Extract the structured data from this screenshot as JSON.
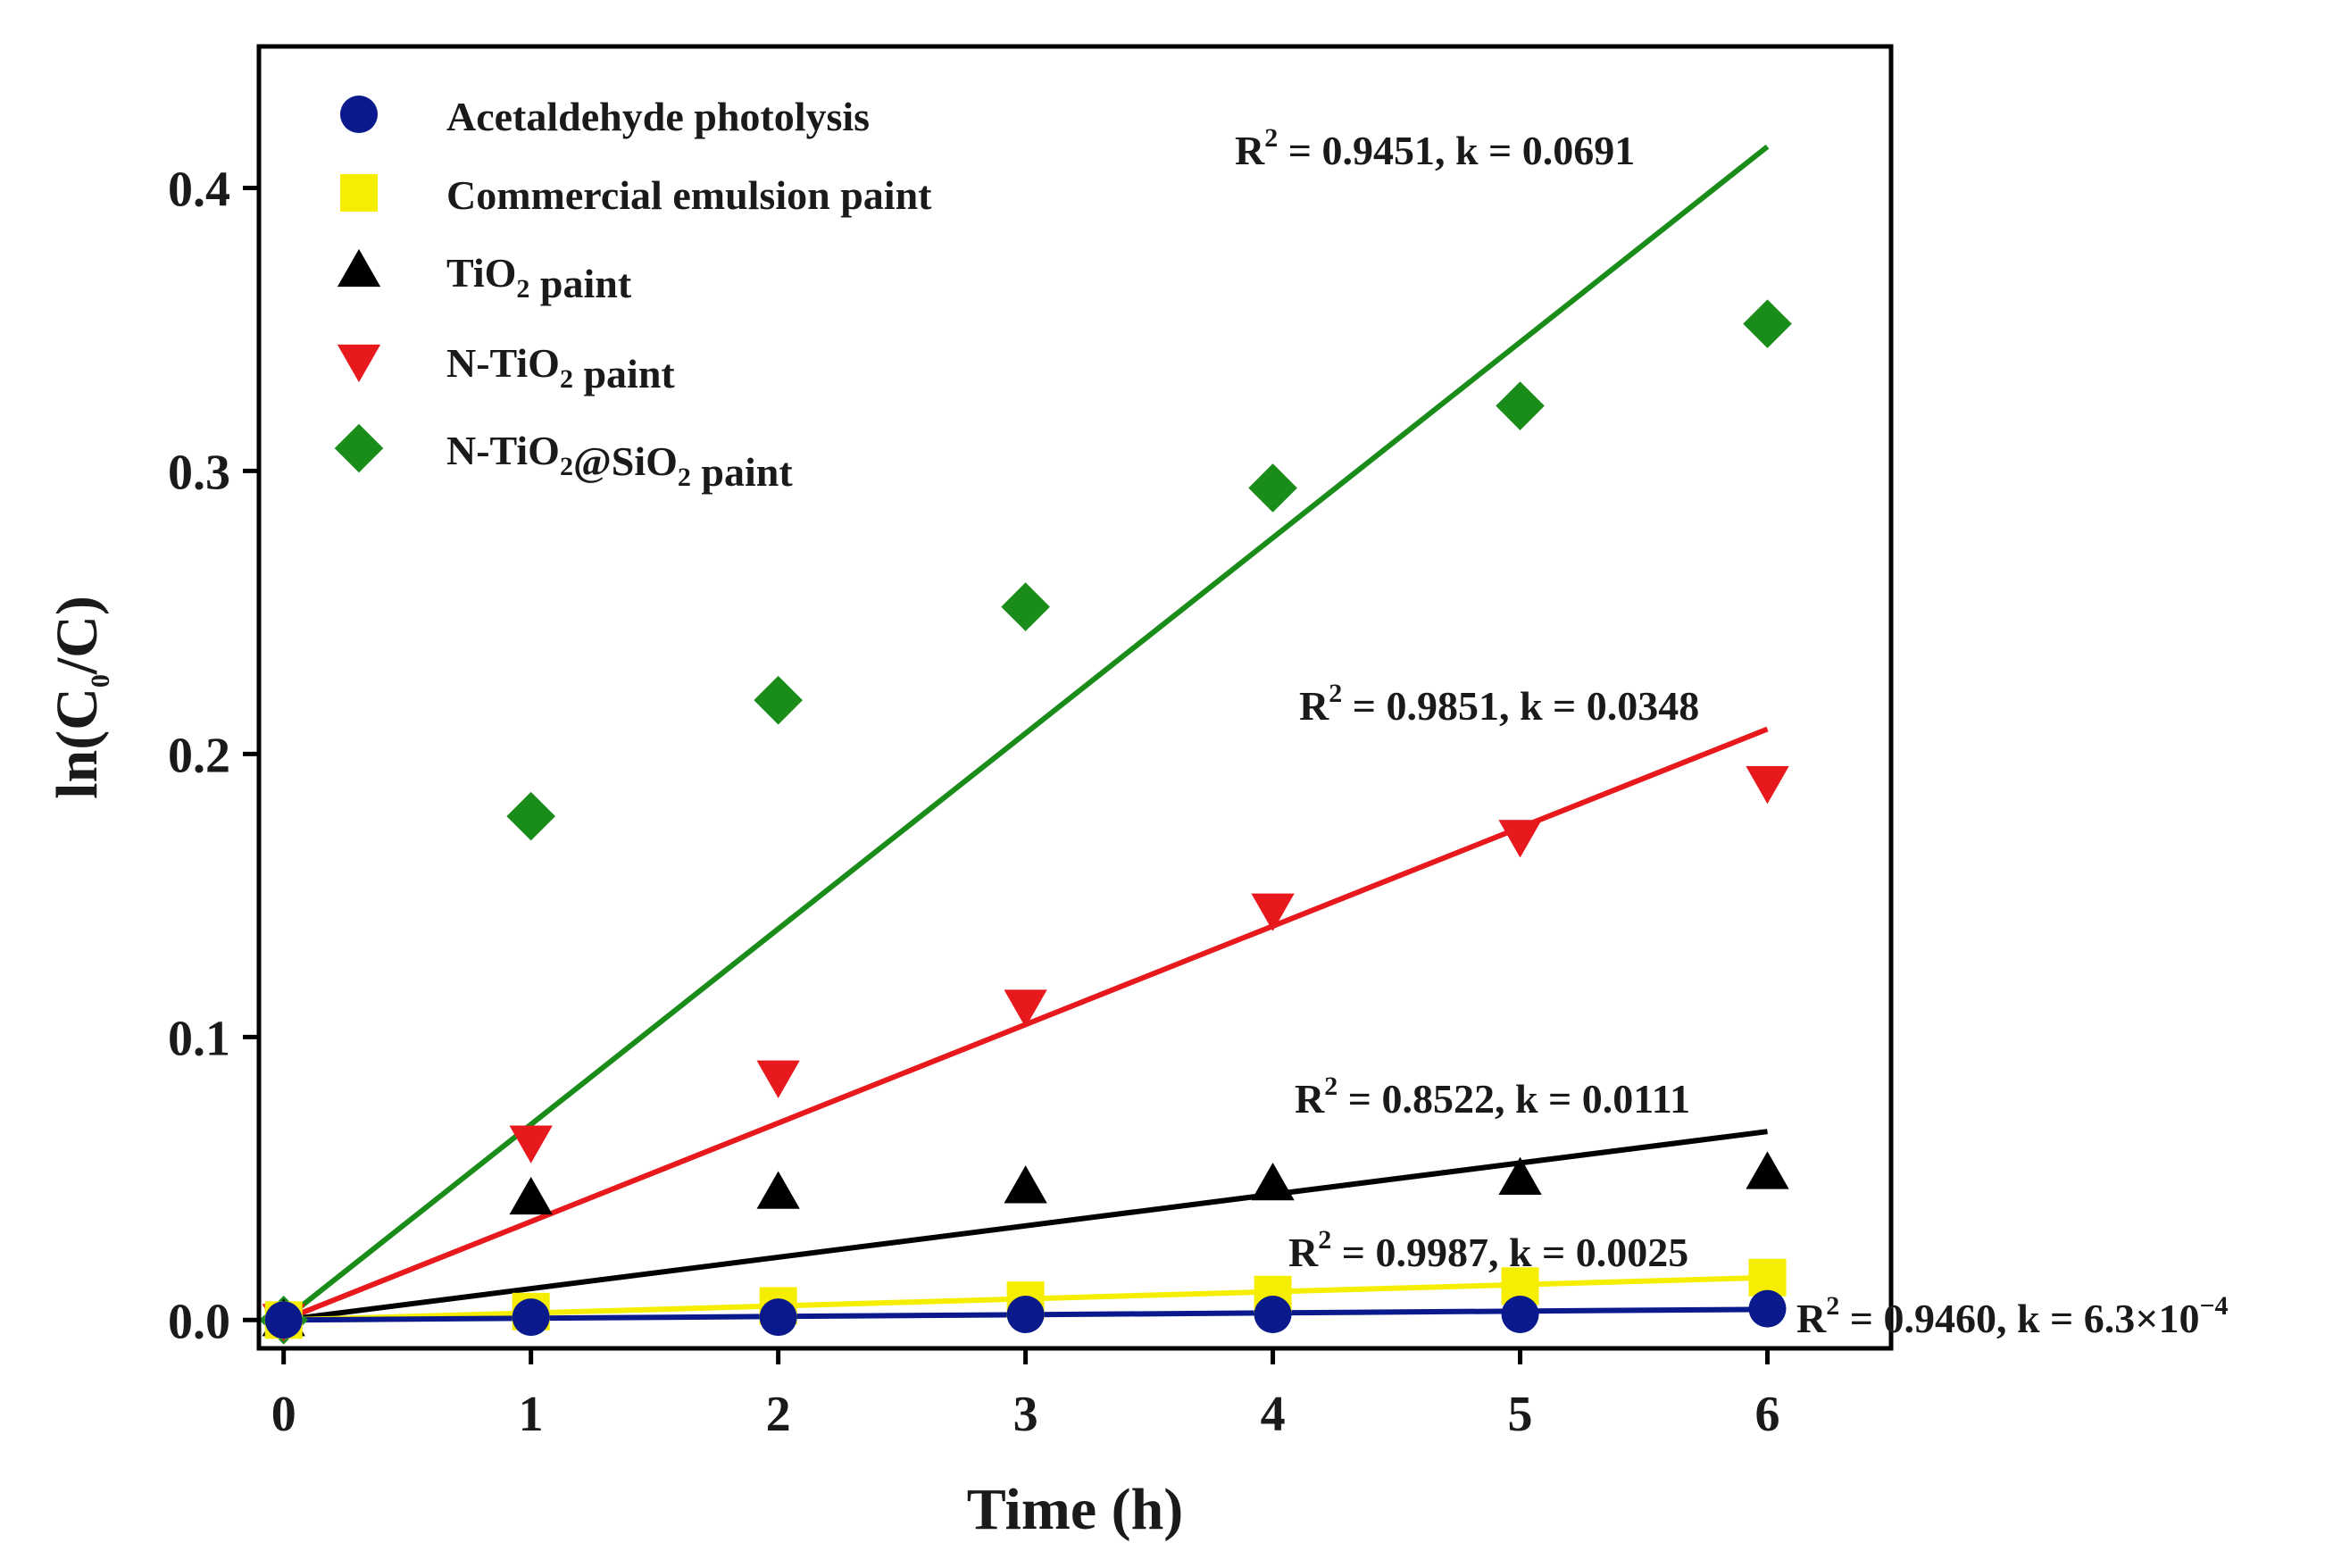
{
  "chart_data": {
    "type": "scatter",
    "xlabel": "Time (h)",
    "ylabel": {
      "prefix": "ln(C",
      "sub": "0",
      "suffix": "/C)"
    },
    "xlim": [
      -0.1,
      6.5
    ],
    "ylim": [
      -0.01,
      0.45
    ],
    "xticks": [
      0,
      1,
      2,
      3,
      4,
      5,
      6
    ],
    "yticks": [
      0.0,
      0.1,
      0.2,
      0.3,
      0.4
    ],
    "ytick_labels": [
      "0.0",
      "0.1",
      "0.2",
      "0.3",
      "0.4"
    ],
    "series": [
      {
        "name": "Acetaldehyde photolysis",
        "label_parts": [
          {
            "t": "Acetaldehyde photolysis"
          }
        ],
        "marker": "circle",
        "color": "#0a1a8c",
        "line_color": "#0a1a8c",
        "x": [
          0,
          1,
          2,
          3,
          4,
          5,
          6
        ],
        "y": [
          0.0,
          0.001,
          0.001,
          0.002,
          0.002,
          0.002,
          0.004
        ],
        "fit_slope": 0.00063,
        "annotation": {
          "r2": "0.9460",
          "k_text": "6.3×10",
          "k_exp": "−4"
        }
      },
      {
        "name": "Commercial emulsion paint",
        "label_parts": [
          {
            "t": "Commercial emulsion paint"
          }
        ],
        "marker": "square",
        "color": "#f5ee00",
        "line_color": "#f5ee00",
        "x": [
          0,
          1,
          2,
          3,
          4,
          5,
          6
        ],
        "y": [
          0.0,
          0.003,
          0.005,
          0.007,
          0.009,
          0.012,
          0.015
        ],
        "fit_slope": 0.0025,
        "annotation": {
          "r2": "0.9987",
          "k_text": "0.0025",
          "k_exp": ""
        }
      },
      {
        "name": "TiO2 paint",
        "label_parts": [
          {
            "t": "TiO"
          },
          {
            "sub": "2"
          },
          {
            "t": " paint"
          }
        ],
        "marker": "triangle-up",
        "color": "#000000",
        "line_color": "#000000",
        "x": [
          0,
          1,
          2,
          3,
          4,
          5,
          6
        ],
        "y": [
          0.0,
          0.043,
          0.045,
          0.047,
          0.048,
          0.05,
          0.052
        ],
        "fit_slope": 0.0111,
        "annotation": {
          "r2": "0.8522",
          "k_text": "0.0111",
          "k_exp": ""
        }
      },
      {
        "name": "N-TiO2 paint",
        "label_parts": [
          {
            "t": "N-TiO"
          },
          {
            "sub": "2"
          },
          {
            "t": " paint"
          }
        ],
        "marker": "triangle-down",
        "color": "#e8191c",
        "line_color": "#e8191c",
        "x": [
          0,
          1,
          2,
          3,
          4,
          5,
          6
        ],
        "y": [
          0.0,
          0.063,
          0.086,
          0.111,
          0.145,
          0.171,
          0.19
        ],
        "fit_slope": 0.0348,
        "annotation": {
          "r2": "0.9851",
          "k_text": "0.0348",
          "k_exp": ""
        }
      },
      {
        "name": "N-TiO2@SiO2 paint",
        "label_parts": [
          {
            "t": "N-TiO"
          },
          {
            "sub": "2"
          },
          {
            "t": "@SiO"
          },
          {
            "sub": "2"
          },
          {
            "t": " paint"
          }
        ],
        "marker": "diamond",
        "color": "#1a8c1a",
        "line_color": "#1a8c1a",
        "x": [
          0,
          1,
          2,
          3,
          4,
          5,
          6
        ],
        "y": [
          0.0,
          0.178,
          0.219,
          0.252,
          0.294,
          0.323,
          0.352
        ],
        "fit_slope": 0.0691,
        "annotation": {
          "r2": "0.9451",
          "k_text": "0.0691",
          "k_exp": ""
        }
      }
    ],
    "legend_placement": "top-left"
  }
}
